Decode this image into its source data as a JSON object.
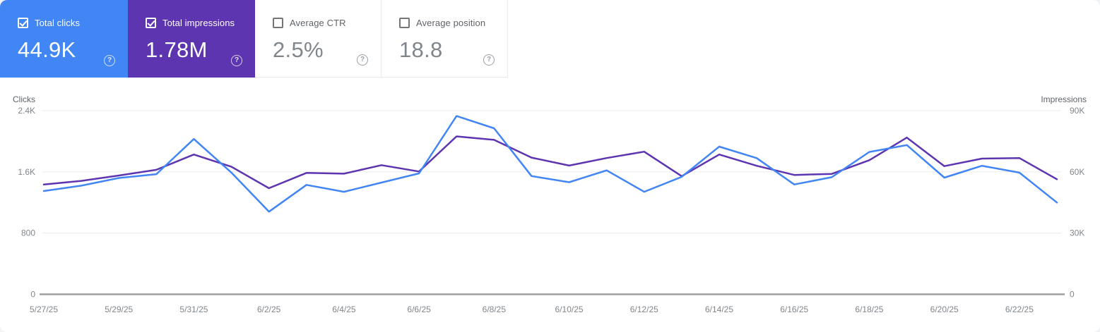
{
  "icons": {
    "help": "?"
  },
  "cards": [
    {
      "id": "total-clicks",
      "label": "Total clicks",
      "value": "44.9K",
      "checked": true,
      "style": "blue",
      "bg": "#4285f4"
    },
    {
      "id": "total-impressions",
      "label": "Total impressions",
      "value": "1.78M",
      "checked": true,
      "style": "purple",
      "bg": "#5e35b1"
    },
    {
      "id": "average-ctr",
      "label": "Average CTR",
      "value": "2.5%",
      "checked": false,
      "style": "plain",
      "bg": "#ffffff"
    },
    {
      "id": "average-position",
      "label": "Average position",
      "value": "18.8",
      "checked": false,
      "style": "plain",
      "bg": "#ffffff"
    }
  ],
  "chart_data": {
    "type": "line",
    "x": [
      "5/27/25",
      "5/28/25",
      "5/29/25",
      "5/30/25",
      "5/31/25",
      "6/1/25",
      "6/2/25",
      "6/3/25",
      "6/4/25",
      "6/5/25",
      "6/6/25",
      "6/7/25",
      "6/8/25",
      "6/9/25",
      "6/10/25",
      "6/11/25",
      "6/12/25",
      "6/13/25",
      "6/14/25",
      "6/15/25",
      "6/16/25",
      "6/17/25",
      "6/18/25",
      "6/19/25",
      "6/20/25",
      "6/21/25",
      "6/22/25",
      "6/23/25"
    ],
    "x_tick_every": 2,
    "series": [
      {
        "name": "Impressions",
        "axis": "right",
        "color": "#5e35b1",
        "values": [
          53800,
          55600,
          58200,
          61000,
          68500,
          62500,
          52000,
          59500,
          59100,
          63300,
          60200,
          77400,
          75700,
          67000,
          63100,
          66800,
          69900,
          57900,
          68500,
          63000,
          58500,
          59000,
          65700,
          76800,
          62800,
          66500,
          66800,
          56400
        ]
      },
      {
        "name": "Clicks",
        "axis": "left",
        "color": "#4285f4",
        "values": [
          1350,
          1420,
          1520,
          1570,
          2030,
          1590,
          1080,
          1430,
          1340,
          1460,
          1580,
          2330,
          2170,
          1545,
          1465,
          1620,
          1340,
          1535,
          1930,
          1780,
          1435,
          1530,
          1860,
          1950,
          1525,
          1680,
          1590,
          1200
        ]
      }
    ],
    "left_axis": {
      "label": "Clicks",
      "max": 2400,
      "tick_values": [
        0,
        800,
        1600,
        2400
      ],
      "tick_labels": [
        "0",
        "800",
        "1.6K",
        "2.4K"
      ]
    },
    "right_axis": {
      "label": "Impressions",
      "max": 90000,
      "tick_values": [
        0,
        30000,
        60000,
        90000
      ],
      "tick_labels": [
        "0",
        "30K",
        "60K",
        "90K"
      ]
    },
    "grid": "horizontal",
    "legend": "none",
    "colors": {
      "grid": "#ebebeb",
      "axis_line": "#9e9e9e",
      "tick_text": "#80868b",
      "axis_label_text": "#5f6368"
    }
  }
}
